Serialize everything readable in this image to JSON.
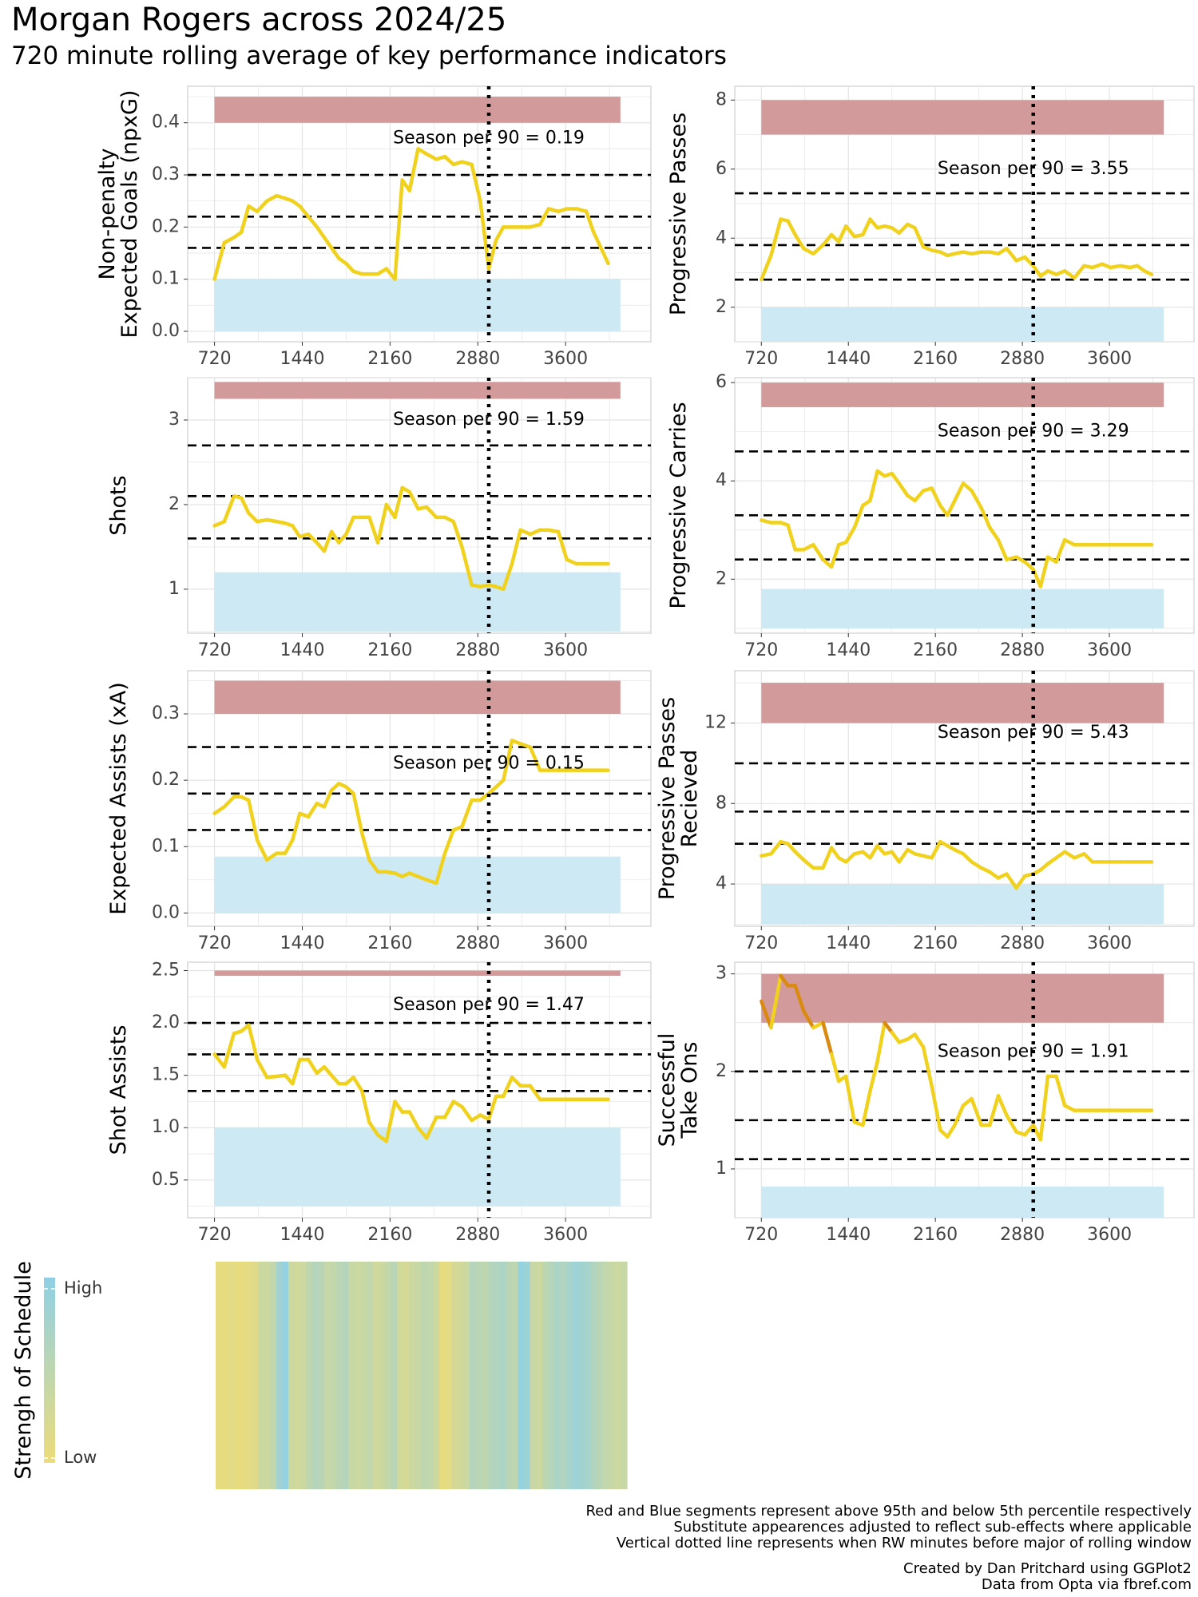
{
  "title": "Morgan Rogers across 2024/25",
  "subtitle": "720 minute rolling average of key performance indicators",
  "colors": {
    "line": "#f0d21e",
    "line_low_sos": "#c2c56a",
    "line_high": "#d98a10",
    "red_band": "#d39a9b",
    "blue_band": "#cde9f4",
    "grid": "#e4e4e4",
    "panel_border": "#cfcfcf",
    "sos_low": "#ecdc7a",
    "sos_high": "#8fd0e6"
  },
  "chart_data": [
    {
      "type": "line",
      "ylabel": "Non-penalty\nExpected Goals (npxG)",
      "x_ticks": [
        "720",
        "1440",
        "2160",
        "2880",
        "3600"
      ],
      "x_range": [
        500,
        4300
      ],
      "ylim": [
        -0.02,
        0.47
      ],
      "y_ticks": [
        0.0,
        0.1,
        0.2,
        0.3,
        0.4
      ],
      "y_tick_labels": [
        "0.0",
        "0.1",
        "0.2",
        "0.3",
        "0.4"
      ],
      "red_band": [
        0.4,
        0.45
      ],
      "blue_band": [
        0.0,
        0.1
      ],
      "dashed_lines": [
        0.16,
        0.22,
        0.3
      ],
      "vline": 2970,
      "annotation": "Season per 90 = 0.19",
      "annotation_y": 0.37,
      "x": [
        720,
        800,
        880,
        940,
        1000,
        1070,
        1150,
        1230,
        1300,
        1360,
        1420,
        1490,
        1560,
        1620,
        1680,
        1740,
        1800,
        1860,
        1930,
        1990,
        2060,
        2130,
        2200,
        2260,
        2320,
        2390,
        2460,
        2540,
        2610,
        2680,
        2750,
        2830,
        2900,
        2970,
        3030,
        3090,
        3160,
        3230,
        3310,
        3390,
        3460,
        3540,
        3610,
        3690,
        3770,
        3830,
        3890,
        3950
      ],
      "y": [
        0.1,
        0.17,
        0.18,
        0.19,
        0.24,
        0.23,
        0.25,
        0.26,
        0.255,
        0.25,
        0.24,
        0.22,
        0.2,
        0.18,
        0.16,
        0.14,
        0.13,
        0.115,
        0.11,
        0.11,
        0.11,
        0.12,
        0.1,
        0.29,
        0.27,
        0.35,
        0.34,
        0.33,
        0.335,
        0.32,
        0.325,
        0.32,
        0.25,
        0.12,
        0.175,
        0.2,
        0.2,
        0.2,
        0.2,
        0.205,
        0.235,
        0.23,
        0.235,
        0.235,
        0.23,
        0.19,
        0.16,
        0.13
      ]
    },
    {
      "type": "line",
      "ylabel": "Progressive Passes",
      "x_ticks": [
        "720",
        "1440",
        "2160",
        "2880",
        "3600"
      ],
      "x_range": [
        500,
        4300
      ],
      "ylim": [
        1.0,
        8.4
      ],
      "y_ticks": [
        2,
        4,
        6,
        8
      ],
      "y_tick_labels": [
        "2",
        "4",
        "6",
        "8"
      ],
      "red_band": [
        7.0,
        8.0
      ],
      "blue_band": [
        1.0,
        2.0
      ],
      "dashed_lines": [
        2.8,
        3.8,
        5.3
      ],
      "vline": 2970,
      "annotation": "Season per 90 = 3.55",
      "annotation_y": 6.0,
      "x": [
        720,
        800,
        880,
        940,
        1000,
        1070,
        1150,
        1230,
        1300,
        1360,
        1420,
        1490,
        1560,
        1620,
        1680,
        1740,
        1800,
        1860,
        1930,
        1990,
        2060,
        2130,
        2200,
        2260,
        2320,
        2390,
        2460,
        2540,
        2610,
        2680,
        2750,
        2830,
        2900,
        2970,
        3030,
        3090,
        3160,
        3230,
        3310,
        3390,
        3460,
        3540,
        3610,
        3690,
        3770,
        3830,
        3890,
        3950
      ],
      "y": [
        2.8,
        3.5,
        4.55,
        4.5,
        4.1,
        3.7,
        3.55,
        3.8,
        4.1,
        3.9,
        4.35,
        4.05,
        4.1,
        4.55,
        4.3,
        4.35,
        4.3,
        4.15,
        4.4,
        4.3,
        3.75,
        3.65,
        3.6,
        3.5,
        3.55,
        3.6,
        3.55,
        3.6,
        3.6,
        3.55,
        3.7,
        3.35,
        3.45,
        3.2,
        2.9,
        3.05,
        2.95,
        3.05,
        2.85,
        3.2,
        3.15,
        3.25,
        3.15,
        3.2,
        3.15,
        3.2,
        3.05,
        2.95
      ]
    },
    {
      "type": "line",
      "ylabel": "Shots",
      "x_ticks": [
        "720",
        "1440",
        "2160",
        "2880",
        "3600"
      ],
      "x_range": [
        500,
        4300
      ],
      "ylim": [
        0.48,
        3.5
      ],
      "y_ticks": [
        1,
        2,
        3
      ],
      "y_tick_labels": [
        "1",
        "2",
        "3"
      ],
      "red_band": [
        3.25,
        3.45
      ],
      "blue_band": [
        0.5,
        1.2
      ],
      "dashed_lines": [
        1.6,
        2.1,
        2.7
      ],
      "vline": 2970,
      "annotation": "Season per 90 = 1.59",
      "annotation_y": 3.0,
      "x": [
        720,
        800,
        880,
        940,
        1000,
        1070,
        1150,
        1230,
        1300,
        1360,
        1420,
        1490,
        1560,
        1620,
        1680,
        1740,
        1800,
        1860,
        1930,
        1990,
        2060,
        2130,
        2200,
        2260,
        2320,
        2390,
        2460,
        2540,
        2610,
        2680,
        2750,
        2830,
        2900,
        2970,
        3030,
        3090,
        3160,
        3230,
        3310,
        3390,
        3460,
        3540,
        3610,
        3690,
        3770,
        3830,
        3890,
        3950
      ],
      "y": [
        1.75,
        1.8,
        2.1,
        2.08,
        1.9,
        1.8,
        1.82,
        1.8,
        1.78,
        1.75,
        1.62,
        1.65,
        1.55,
        1.45,
        1.68,
        1.55,
        1.65,
        1.85,
        1.85,
        1.85,
        1.55,
        2.0,
        1.85,
        2.2,
        2.15,
        1.95,
        1.97,
        1.85,
        1.85,
        1.8,
        1.5,
        1.05,
        1.03,
        1.05,
        1.03,
        1.0,
        1.3,
        1.7,
        1.65,
        1.7,
        1.7,
        1.68,
        1.35,
        1.3,
        1.3,
        1.3,
        1.3,
        1.3
      ]
    },
    {
      "type": "line",
      "ylabel": "Progressive Carries",
      "x_ticks": [
        "720",
        "1440",
        "2160",
        "2880",
        "3600"
      ],
      "x_range": [
        500,
        4300
      ],
      "ylim": [
        0.9,
        6.1
      ],
      "y_ticks": [
        2,
        4,
        6
      ],
      "y_tick_labels": [
        "2",
        "4",
        "6"
      ],
      "red_band": [
        5.5,
        6.0
      ],
      "blue_band": [
        1.0,
        1.8
      ],
      "dashed_lines": [
        2.4,
        3.3,
        4.6
      ],
      "vline": 2970,
      "annotation": "Season per 90 = 3.29",
      "annotation_y": 5.0,
      "x": [
        720,
        800,
        880,
        940,
        1000,
        1070,
        1150,
        1230,
        1300,
        1360,
        1420,
        1490,
        1560,
        1620,
        1680,
        1740,
        1800,
        1860,
        1930,
        1990,
        2060,
        2130,
        2200,
        2260,
        2320,
        2390,
        2460,
        2540,
        2610,
        2680,
        2750,
        2830,
        2900,
        2970,
        3030,
        3090,
        3160,
        3230,
        3310,
        3390,
        3460,
        3540,
        3610,
        3690,
        3770,
        3830,
        3890,
        3950
      ],
      "y": [
        3.2,
        3.15,
        3.15,
        3.1,
        2.6,
        2.6,
        2.7,
        2.4,
        2.25,
        2.7,
        2.75,
        3.05,
        3.5,
        3.6,
        4.2,
        4.1,
        4.15,
        3.95,
        3.7,
        3.6,
        3.8,
        3.85,
        3.5,
        3.3,
        3.6,
        3.95,
        3.8,
        3.45,
        3.05,
        2.8,
        2.4,
        2.45,
        2.35,
        2.2,
        1.85,
        2.45,
        2.35,
        2.8,
        2.7,
        2.7,
        2.7,
        2.7,
        2.7,
        2.7,
        2.7,
        2.7,
        2.7,
        2.7
      ]
    },
    {
      "type": "line",
      "ylabel": "Expected Assists (xA)",
      "x_ticks": [
        "720",
        "1440",
        "2160",
        "2880",
        "3600"
      ],
      "x_range": [
        500,
        4300
      ],
      "ylim": [
        -0.02,
        0.365
      ],
      "y_ticks": [
        0.0,
        0.1,
        0.2,
        0.3
      ],
      "y_tick_labels": [
        "0.0",
        "0.1",
        "0.2",
        "0.3"
      ],
      "red_band": [
        0.3,
        0.35
      ],
      "blue_band": [
        0.0,
        0.085
      ],
      "dashed_lines": [
        0.125,
        0.18,
        0.25
      ],
      "vline": 2970,
      "annotation": "Season per 90 = 0.15",
      "annotation_y": 0.225,
      "x": [
        720,
        800,
        880,
        940,
        1000,
        1070,
        1150,
        1230,
        1300,
        1360,
        1420,
        1490,
        1560,
        1620,
        1680,
        1740,
        1800,
        1860,
        1930,
        1990,
        2060,
        2130,
        2200,
        2260,
        2320,
        2390,
        2460,
        2540,
        2610,
        2680,
        2750,
        2830,
        2900,
        2970,
        3030,
        3090,
        3160,
        3230,
        3310,
        3390,
        3460,
        3540,
        3610,
        3690,
        3770,
        3830,
        3890,
        3950
      ],
      "y": [
        0.15,
        0.16,
        0.175,
        0.175,
        0.17,
        0.11,
        0.08,
        0.09,
        0.09,
        0.11,
        0.15,
        0.145,
        0.165,
        0.16,
        0.185,
        0.195,
        0.19,
        0.18,
        0.12,
        0.08,
        0.062,
        0.062,
        0.06,
        0.055,
        0.06,
        0.055,
        0.05,
        0.045,
        0.09,
        0.125,
        0.13,
        0.17,
        0.17,
        0.18,
        0.19,
        0.2,
        0.26,
        0.255,
        0.25,
        0.215,
        0.215,
        0.215,
        0.215,
        0.215,
        0.215,
        0.215,
        0.215,
        0.215
      ]
    },
    {
      "type": "line",
      "ylabel": "Progressive Passes\nRecieved",
      "x_ticks": [
        "720",
        "1440",
        "2160",
        "2880",
        "3600"
      ],
      "x_range": [
        500,
        4300
      ],
      "ylim": [
        1.9,
        14.6
      ],
      "y_ticks": [
        4,
        8,
        12
      ],
      "y_tick_labels": [
        "4",
        "8",
        "12"
      ],
      "red_band": [
        12.0,
        14.0
      ],
      "blue_band": [
        2.0,
        4.0
      ],
      "dashed_lines": [
        6.0,
        7.6,
        10.0
      ],
      "vline": 2970,
      "annotation": "Season per 90 = 5.43",
      "annotation_y": 11.5,
      "x": [
        720,
        800,
        880,
        940,
        1000,
        1070,
        1150,
        1230,
        1300,
        1360,
        1420,
        1490,
        1560,
        1620,
        1680,
        1740,
        1800,
        1860,
        1930,
        1990,
        2060,
        2130,
        2200,
        2260,
        2320,
        2390,
        2460,
        2540,
        2610,
        2680,
        2750,
        2830,
        2900,
        2970,
        3030,
        3090,
        3160,
        3230,
        3310,
        3390,
        3460,
        3540,
        3610,
        3690,
        3770,
        3830,
        3890,
        3950
      ],
      "y": [
        5.4,
        5.5,
        6.1,
        6.0,
        5.6,
        5.2,
        4.8,
        4.8,
        5.8,
        5.3,
        5.1,
        5.5,
        5.6,
        5.3,
        5.9,
        5.5,
        5.6,
        5.1,
        5.7,
        5.5,
        5.4,
        5.3,
        6.1,
        5.9,
        5.7,
        5.5,
        5.1,
        4.8,
        4.6,
        4.3,
        4.5,
        3.8,
        4.4,
        4.5,
        4.7,
        5.0,
        5.3,
        5.6,
        5.3,
        5.5,
        5.1,
        5.1,
        5.1,
        5.1,
        5.1,
        5.1,
        5.1,
        5.1
      ]
    },
    {
      "type": "line",
      "ylabel": "Shot Assists",
      "x_ticks": [
        "720",
        "1440",
        "2160",
        "2880",
        "3600"
      ],
      "x_range": [
        500,
        4300
      ],
      "ylim": [
        0.14,
        2.58
      ],
      "y_ticks": [
        0.5,
        1.0,
        1.5,
        2.0,
        2.5
      ],
      "y_tick_labels": [
        "0.5",
        "1.0",
        "1.5",
        "2.0",
        "2.5"
      ],
      "red_band": [
        2.45,
        2.5
      ],
      "blue_band": [
        0.25,
        1.0
      ],
      "dashed_lines": [
        1.35,
        1.7,
        2.0
      ],
      "vline": 2970,
      "annotation": "Season per 90 = 1.47",
      "annotation_y": 2.17,
      "x": [
        720,
        800,
        880,
        940,
        1000,
        1070,
        1150,
        1230,
        1300,
        1360,
        1420,
        1490,
        1560,
        1620,
        1680,
        1740,
        1800,
        1860,
        1930,
        1990,
        2060,
        2130,
        2200,
        2260,
        2320,
        2390,
        2460,
        2540,
        2610,
        2680,
        2750,
        2830,
        2900,
        2970,
        3030,
        3090,
        3160,
        3230,
        3310,
        3390,
        3460,
        3540,
        3610,
        3690,
        3770,
        3830,
        3890,
        3950
      ],
      "y": [
        1.7,
        1.58,
        1.9,
        1.92,
        1.98,
        1.65,
        1.48,
        1.49,
        1.5,
        1.42,
        1.65,
        1.65,
        1.52,
        1.58,
        1.5,
        1.42,
        1.42,
        1.48,
        1.35,
        1.05,
        0.93,
        0.87,
        1.25,
        1.15,
        1.15,
        1.0,
        0.9,
        1.1,
        1.1,
        1.25,
        1.2,
        1.07,
        1.12,
        1.08,
        1.3,
        1.3,
        1.48,
        1.4,
        1.4,
        1.27,
        1.27,
        1.27,
        1.27,
        1.27,
        1.27,
        1.27,
        1.27,
        1.27
      ]
    },
    {
      "type": "line",
      "ylabel": "Successful\nTake Ons",
      "x_ticks": [
        "720",
        "1440",
        "2160",
        "2880",
        "3600"
      ],
      "x_range": [
        500,
        4300
      ],
      "ylim": [
        0.5,
        3.12
      ],
      "y_ticks": [
        1,
        2,
        3
      ],
      "y_tick_labels": [
        "1",
        "2",
        "3"
      ],
      "red_band": [
        2.5,
        3.0
      ],
      "blue_band": [
        0.5,
        0.82
      ],
      "dashed_lines": [
        1.1,
        1.5,
        2.0
      ],
      "vline": 2970,
      "annotation": "Season per 90 = 1.91",
      "annotation_y": 2.2,
      "x": [
        720,
        800,
        880,
        940,
        1000,
        1070,
        1150,
        1230,
        1300,
        1360,
        1420,
        1490,
        1560,
        1620,
        1680,
        1740,
        1800,
        1860,
        1930,
        1990,
        2060,
        2130,
        2200,
        2260,
        2320,
        2390,
        2460,
        2540,
        2610,
        2680,
        2750,
        2830,
        2900,
        2970,
        3030,
        3090,
        3160,
        3230,
        3310,
        3390,
        3460,
        3540,
        3610,
        3690,
        3770,
        3830,
        3890,
        3950
      ],
      "y": [
        2.72,
        2.45,
        2.98,
        2.88,
        2.88,
        2.62,
        2.45,
        2.5,
        2.18,
        1.9,
        1.95,
        1.48,
        1.45,
        1.8,
        2.1,
        2.5,
        2.4,
        2.3,
        2.33,
        2.38,
        2.25,
        1.85,
        1.4,
        1.33,
        1.45,
        1.65,
        1.72,
        1.45,
        1.45,
        1.75,
        1.55,
        1.38,
        1.35,
        1.45,
        1.3,
        1.95,
        1.95,
        1.65,
        1.6,
        1.6,
        1.6,
        1.6,
        1.6,
        1.6,
        1.6,
        1.6,
        1.6,
        1.6
      ]
    }
  ],
  "sos": {
    "legend_title": "Strengh of Schedule",
    "high_label": "High",
    "low_label": "Low",
    "values": [
      0.05,
      0.05,
      0.1,
      0.05,
      0.05,
      0.1,
      0.15,
      0.35,
      0.35,
      0.45,
      0.8,
      0.95,
      0.35,
      0.3,
      0.35,
      0.5,
      0.6,
      0.55,
      0.4,
      0.45,
      0.55,
      0.6,
      0.4,
      0.35,
      0.4,
      0.45,
      0.3,
      0.35,
      0.45,
      0.55,
      0.3,
      0.25,
      0.35,
      0.4,
      0.5,
      0.45,
      0.35,
      0.05,
      0.1,
      0.25,
      0.3,
      0.35,
      0.6,
      0.55,
      0.5,
      0.6,
      0.65,
      0.7,
      0.55,
      0.5,
      0.95,
      0.85,
      0.4,
      0.35,
      0.5,
      0.6,
      0.7,
      0.65,
      0.75,
      0.85,
      0.8,
      0.75,
      0.65,
      0.55,
      0.45,
      0.4,
      0.35,
      0.4
    ]
  },
  "captions": {
    "line1": "Red and Blue segments represent above 95th and below 5th percentile respectively",
    "line2": "Substitute appearences adjusted to reflect sub-effects where applicable",
    "line3": "Vertical dotted line represents when RW minutes before major of rolling window",
    "credit1": "Created by Dan Pritchard using GGPlot2",
    "credit2": "Data from Opta via fbref.com"
  }
}
